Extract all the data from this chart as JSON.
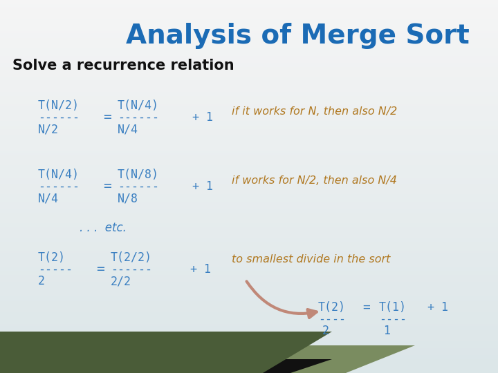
{
  "title": "Analysis of Merge Sort",
  "title_color": "#1B6BB5",
  "title_fontsize": 28,
  "subtitle": "Solve a recurrence relation",
  "subtitle_color": "#111111",
  "subtitle_fontsize": 15,
  "blue_color": "#3A7FC1",
  "orange_color": "#B07820",
  "row1_comment": "if it works for N, then also N/2",
  "row2_comment": "if works for N/2, then also N/4",
  "row3_comment": "to smallest divide in the sort",
  "etc_text": ". . .  etc.",
  "band1_color": "#4A5C38",
  "band2_color": "#7A8C60"
}
